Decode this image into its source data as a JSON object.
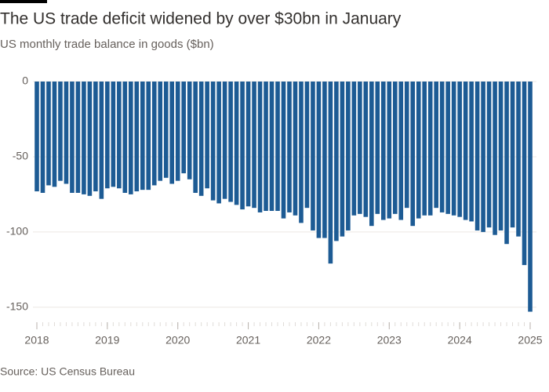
{
  "chart_data": {
    "type": "bar",
    "title": "The US trade deficit widened by over $30bn in January",
    "subtitle": "US monthly trade balance in goods ($bn)",
    "source": "Source: US Census Bureau",
    "color": "#1d5b94",
    "grid": true,
    "ylim": [
      -160,
      0
    ],
    "yticks": [
      0,
      -50,
      -100,
      -150
    ],
    "categories": [
      "2018",
      null,
      null,
      null,
      null,
      null,
      null,
      null,
      null,
      null,
      null,
      null,
      "2019",
      null,
      null,
      null,
      null,
      null,
      null,
      null,
      null,
      null,
      null,
      null,
      "2020",
      null,
      null,
      null,
      null,
      null,
      null,
      null,
      null,
      null,
      null,
      null,
      "2021",
      null,
      null,
      null,
      null,
      null,
      null,
      null,
      null,
      null,
      null,
      null,
      "2022",
      null,
      null,
      null,
      null,
      null,
      null,
      null,
      null,
      null,
      null,
      null,
      "2023",
      null,
      null,
      null,
      null,
      null,
      null,
      null,
      null,
      null,
      null,
      null,
      "2024",
      null,
      null,
      null,
      null,
      null,
      null,
      null,
      null,
      null,
      null,
      null,
      "2025"
    ],
    "values": [
      -73,
      -74,
      -69,
      -70,
      -66,
      -68,
      -74,
      -74,
      -75,
      -76,
      -73,
      -78,
      -71,
      -70,
      -71,
      -74,
      -75,
      -73,
      -72,
      -72,
      -69,
      -66,
      -64,
      -68,
      -66,
      -61,
      -65,
      -74,
      -76,
      -71,
      -79,
      -81,
      -78,
      -80,
      -82,
      -85,
      -83,
      -84,
      -87,
      -86,
      -86,
      -86,
      -91,
      -87,
      -89,
      -94,
      -84,
      -99,
      -104,
      -104,
      -121,
      -106,
      -103,
      -99,
      -89,
      -88,
      -90,
      -96,
      -88,
      -92,
      -91,
      -88,
      -92,
      -84,
      -96,
      -91,
      -89,
      -89,
      -84,
      -87,
      -88,
      -89,
      -90,
      -92,
      -93,
      -99,
      -100,
      -97,
      -102,
      -99,
      -108,
      -97,
      -103,
      -122,
      -153
    ]
  }
}
